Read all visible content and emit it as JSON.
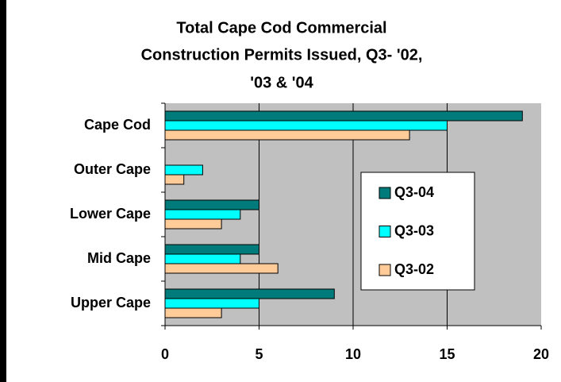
{
  "chart_data": {
    "type": "barh",
    "title": [
      "Total Cape Cod Commercial",
      "Construction Permits Issued, Q3- '02,",
      "'03 & '04"
    ],
    "categories": [
      "Cape Cod",
      "Outer Cape",
      "Lower Cape",
      "Mid Cape",
      "Upper Cape"
    ],
    "series": [
      {
        "name": "Q3-04",
        "color": "#007b7b",
        "values": [
          19,
          0,
          5,
          5,
          9
        ]
      },
      {
        "name": "Q3-03",
        "color": "#00ffff",
        "values": [
          15,
          2,
          4,
          4,
          5
        ]
      },
      {
        "name": "Q3-02",
        "color": "#ffcc99",
        "values": [
          13,
          1,
          3,
          6,
          3
        ]
      }
    ],
    "xlim": [
      0,
      20
    ],
    "xticks": [
      0,
      5,
      10,
      15,
      20
    ],
    "grid": true,
    "legend": "right"
  }
}
